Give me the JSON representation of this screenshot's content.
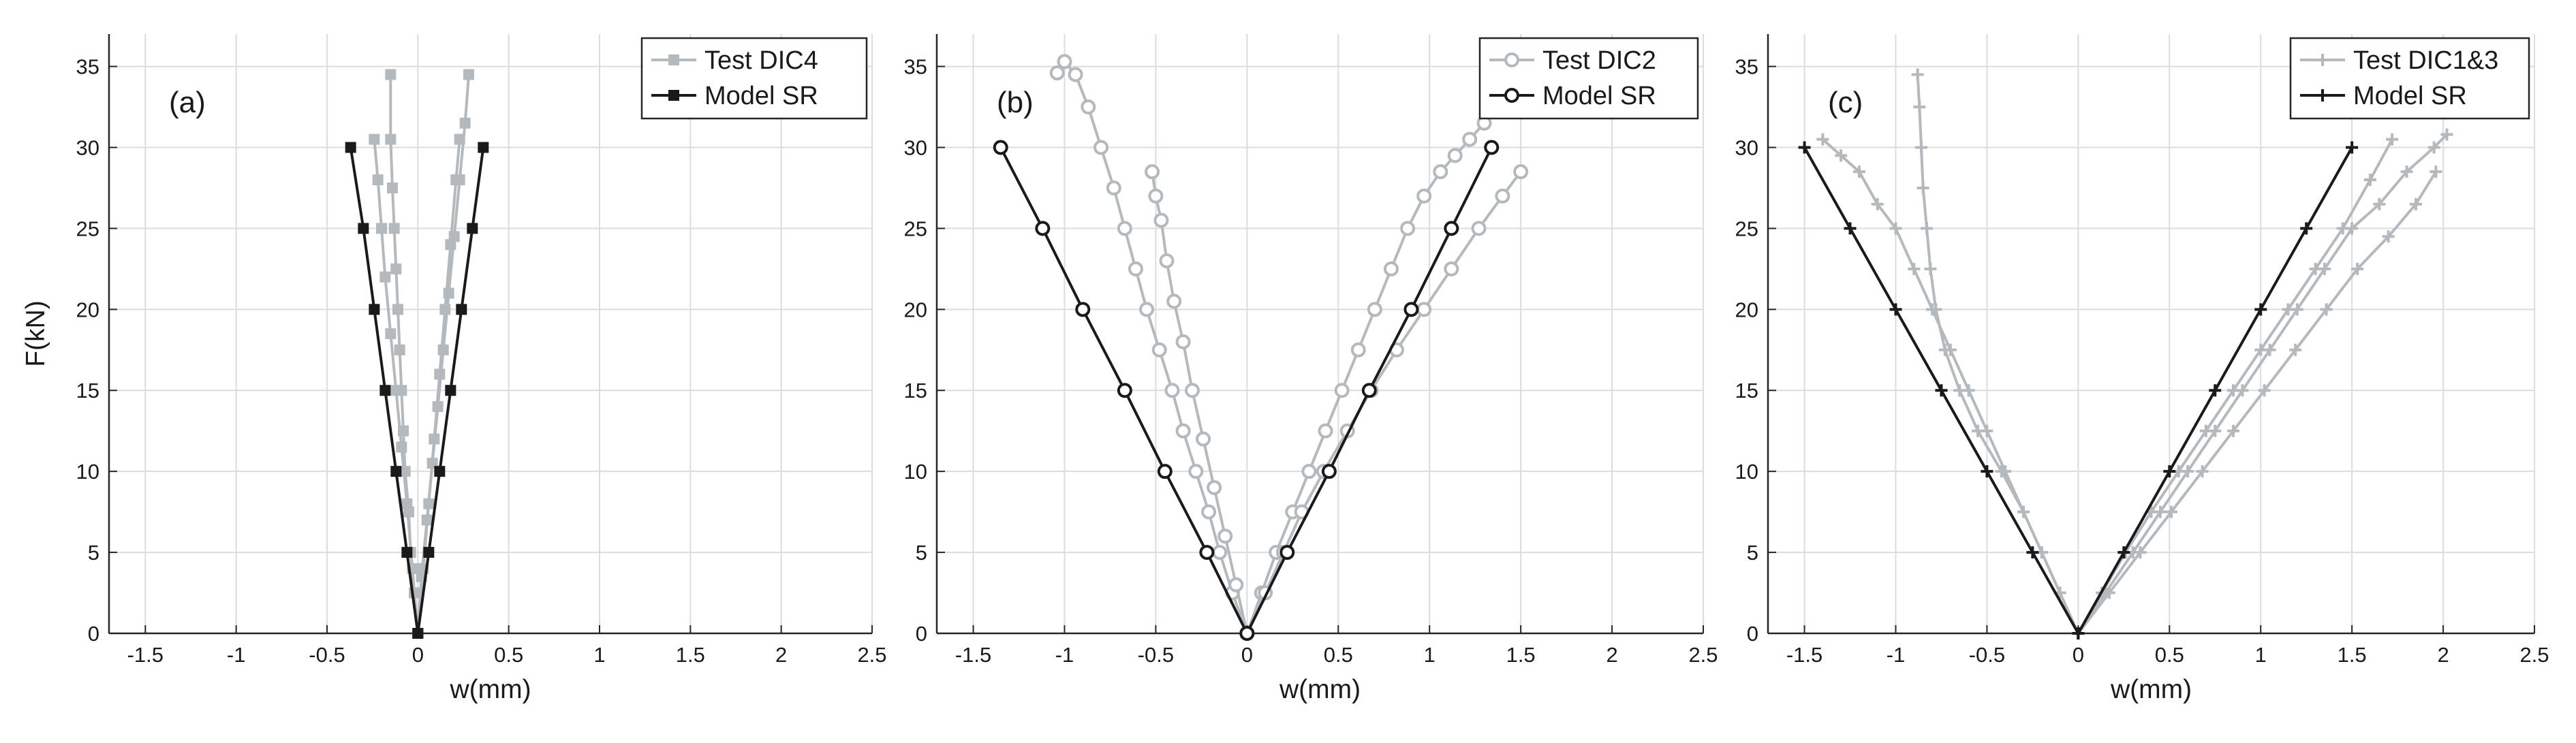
{
  "chart_data": [
    {
      "type": "line",
      "panel_label": "(a)",
      "xlabel": "w(mm)",
      "ylabel": "F(kN)",
      "xlim": [
        -1.7,
        2.5
      ],
      "ylim": [
        0,
        37
      ],
      "xticks": [
        -1.5,
        -1,
        -0.5,
        0,
        0.5,
        1,
        1.5,
        2,
        2.5
      ],
      "xtick_labels": [
        "-1.5",
        "-1",
        "-0.5",
        "0",
        "0.5",
        "1",
        "1.5",
        "2",
        "2.5"
      ],
      "yticks": [
        0,
        5,
        10,
        15,
        20,
        25,
        30,
        35
      ],
      "ytick_labels": [
        "0",
        "5",
        "10",
        "15",
        "20",
        "25",
        "30",
        "35"
      ],
      "grid": true,
      "legend_position": "top-right",
      "series": [
        {
          "name": "Test DIC4",
          "role": "test",
          "color": "#b4b9bd",
          "marker": "square",
          "lines": [
            {
              "x": [
                0,
                -0.02,
                -0.04,
                -0.05,
                -0.07,
                -0.08,
                -0.09,
                -0.1,
                -0.11,
                -0.12,
                -0.13,
                -0.14,
                -0.15,
                -0.15
              ],
              "y": [
                0,
                2.5,
                5,
                7.5,
                10,
                12.5,
                15,
                17.5,
                20,
                22.5,
                25,
                27.5,
                30.5,
                34.5
              ]
            },
            {
              "x": [
                0,
                -0.03,
                -0.06,
                -0.09,
                -0.12,
                -0.15,
                -0.18,
                -0.2,
                -0.22,
                -0.24
              ],
              "y": [
                0,
                4,
                8,
                11.5,
                15,
                18.5,
                22,
                25,
                28,
                30.5
              ]
            },
            {
              "x": [
                0,
                0.02,
                0.05,
                0.08,
                0.11,
                0.14,
                0.17,
                0.2,
                0.23,
                0.26,
                0.28
              ],
              "y": [
                0,
                3.5,
                7,
                10.5,
                14,
                17.5,
                21,
                24.5,
                28,
                31.5,
                34.5
              ]
            },
            {
              "x": [
                0,
                0.03,
                0.06,
                0.09,
                0.12,
                0.15,
                0.18,
                0.21,
                0.23
              ],
              "y": [
                0,
                4,
                8,
                12,
                16,
                20,
                24,
                28,
                30.5
              ]
            }
          ]
        },
        {
          "name": "Model SR",
          "role": "model",
          "color": "#1a1a1a",
          "marker": "square",
          "lines": [
            {
              "x": [
                0,
                -0.06,
                -0.12,
                -0.18,
                -0.24,
                -0.3,
                -0.37
              ],
              "y": [
                0,
                5,
                10,
                15,
                20,
                25,
                30
              ]
            },
            {
              "x": [
                0,
                0.06,
                0.12,
                0.18,
                0.24,
                0.3,
                0.36
              ],
              "y": [
                0,
                5,
                10,
                15,
                20,
                25,
                30
              ]
            }
          ]
        }
      ]
    },
    {
      "type": "line",
      "panel_label": "(b)",
      "xlabel": "w(mm)",
      "ylabel": "",
      "xlim": [
        -1.7,
        2.5
      ],
      "ylim": [
        0,
        37
      ],
      "xticks": [
        -1.5,
        -1,
        -0.5,
        0,
        0.5,
        1,
        1.5,
        2,
        2.5
      ],
      "xtick_labels": [
        "-1.5",
        "-1",
        "-0.5",
        "0",
        "0.5",
        "1",
        "1.5",
        "2",
        "2.5"
      ],
      "yticks": [
        0,
        5,
        10,
        15,
        20,
        25,
        30,
        35
      ],
      "ytick_labels": [
        "0",
        "5",
        "10",
        "15",
        "20",
        "25",
        "30",
        "35"
      ],
      "grid": true,
      "legend_position": "top-right",
      "series": [
        {
          "name": "Test DIC2",
          "role": "test",
          "color": "#b4b9bd",
          "marker": "circle",
          "lines": [
            {
              "x": [
                0,
                -0.08,
                -0.15,
                -0.21,
                -0.28,
                -0.35,
                -0.41,
                -0.48,
                -0.55,
                -0.61,
                -0.67,
                -0.73,
                -0.8,
                -0.87,
                -0.94,
                -1.0,
                -1.04
              ],
              "y": [
                0,
                2.5,
                5,
                7.5,
                10,
                12.5,
                15,
                17.5,
                20,
                22.5,
                25,
                27.5,
                30,
                32.5,
                34.5,
                35.3,
                34.6
              ]
            },
            {
              "x": [
                0,
                -0.06,
                -0.12,
                -0.18,
                -0.24,
                -0.3,
                -0.35,
                -0.4,
                -0.44,
                -0.47,
                -0.5,
                -0.52
              ],
              "y": [
                0,
                3,
                6,
                9,
                12,
                15,
                18,
                20.5,
                23,
                25.5,
                27,
                28.5
              ]
            },
            {
              "x": [
                0,
                0.08,
                0.16,
                0.25,
                0.34,
                0.43,
                0.52,
                0.61,
                0.7,
                0.79,
                0.88,
                0.97,
                1.06,
                1.14,
                1.22,
                1.3
              ],
              "y": [
                0,
                2.5,
                5,
                7.5,
                10,
                12.5,
                15,
                17.5,
                20,
                22.5,
                25,
                27,
                28.5,
                29.5,
                30.5,
                31.5
              ]
            },
            {
              "x": [
                0,
                0.1,
                0.2,
                0.3,
                0.42,
                0.55,
                0.68,
                0.82,
                0.97,
                1.12,
                1.27,
                1.4,
                1.5
              ],
              "y": [
                0,
                2.5,
                5,
                7.5,
                10,
                12.5,
                15,
                17.5,
                20,
                22.5,
                25,
                27,
                28.5
              ]
            }
          ]
        },
        {
          "name": "Model SR",
          "role": "model",
          "color": "#1a1a1a",
          "marker": "circle",
          "lines": [
            {
              "x": [
                0,
                -0.22,
                -0.45,
                -0.67,
                -0.9,
                -1.12,
                -1.35
              ],
              "y": [
                0,
                5,
                10,
                15,
                20,
                25,
                30
              ]
            },
            {
              "x": [
                0,
                0.22,
                0.45,
                0.67,
                0.9,
                1.12,
                1.34
              ],
              "y": [
                0,
                5,
                10,
                15,
                20,
                25,
                30
              ]
            }
          ]
        }
      ]
    },
    {
      "type": "line",
      "panel_label": "(c)",
      "xlabel": "w(mm)",
      "ylabel": "",
      "xlim": [
        -1.7,
        2.5
      ],
      "ylim": [
        0,
        37
      ],
      "xticks": [
        -1.5,
        -1,
        -0.5,
        0,
        0.5,
        1,
        1.5,
        2,
        2.5
      ],
      "xtick_labels": [
        "-1.5",
        "-1",
        "-0.5",
        "0",
        "0.5",
        "1",
        "1.5",
        "2",
        "2.5"
      ],
      "yticks": [
        0,
        5,
        10,
        15,
        20,
        25,
        30,
        35
      ],
      "ytick_labels": [
        "0",
        "5",
        "10",
        "15",
        "20",
        "25",
        "30",
        "35"
      ],
      "grid": true,
      "legend_position": "top-right",
      "series": [
        {
          "name": "Test DIC1&3",
          "role": "test",
          "color": "#b4b9bd",
          "marker": "plus",
          "lines": [
            {
              "x": [
                0,
                -0.1,
                -0.2,
                -0.3,
                -0.4,
                -0.5,
                -0.6,
                -0.7,
                -0.8,
                -0.9,
                -1.0,
                -1.1,
                -1.2,
                -1.3,
                -1.4
              ],
              "y": [
                0,
                2.5,
                5,
                7.5,
                10,
                12.5,
                15,
                17.5,
                20,
                22.5,
                25,
                26.5,
                28.5,
                29.5,
                30.5
              ]
            },
            {
              "x": [
                0,
                -0.1,
                -0.2,
                -0.3,
                -0.42,
                -0.55,
                -0.65,
                -0.73,
                -0.78,
                -0.81,
                -0.83,
                -0.85,
                -0.86,
                -0.87,
                -0.88
              ],
              "y": [
                0,
                2.5,
                5,
                7.5,
                10,
                12.5,
                15,
                17.5,
                20,
                22.5,
                25,
                27.5,
                30,
                32.5,
                34.5
              ]
            },
            {
              "x": [
                0,
                0.15,
                0.3,
                0.45,
                0.6,
                0.75,
                0.9,
                1.05,
                1.2,
                1.35,
                1.5,
                1.65,
                1.8,
                1.95,
                2.02
              ],
              "y": [
                0,
                2.5,
                5,
                7.5,
                10,
                12.5,
                15,
                17.5,
                20,
                22.5,
                25,
                26.5,
                28.5,
                30,
                30.8
              ]
            },
            {
              "x": [
                0,
                0.17,
                0.34,
                0.51,
                0.68,
                0.85,
                1.02,
                1.19,
                1.36,
                1.53,
                1.7,
                1.85,
                1.96
              ],
              "y": [
                0,
                2.5,
                5,
                7.5,
                10,
                12.5,
                15,
                17.5,
                20,
                22.5,
                24.5,
                26.5,
                28.5
              ]
            },
            {
              "x": [
                0,
                0.13,
                0.26,
                0.4,
                0.55,
                0.7,
                0.85,
                1.0,
                1.15,
                1.3,
                1.45,
                1.6,
                1.72
              ],
              "y": [
                0,
                2.5,
                5,
                7.5,
                10,
                12.5,
                15,
                17.5,
                20,
                22.5,
                25,
                28,
                30.5
              ]
            }
          ]
        },
        {
          "name": "Model SR",
          "role": "model",
          "color": "#1a1a1a",
          "marker": "plus",
          "lines": [
            {
              "x": [
                0,
                -0.25,
                -0.5,
                -0.75,
                -1.0,
                -1.25,
                -1.5
              ],
              "y": [
                0,
                5,
                10,
                15,
                20,
                25,
                30
              ]
            },
            {
              "x": [
                0,
                0.25,
                0.5,
                0.75,
                1.0,
                1.25,
                1.5
              ],
              "y": [
                0,
                5,
                10,
                15,
                20,
                25,
                30
              ]
            }
          ]
        }
      ]
    }
  ]
}
